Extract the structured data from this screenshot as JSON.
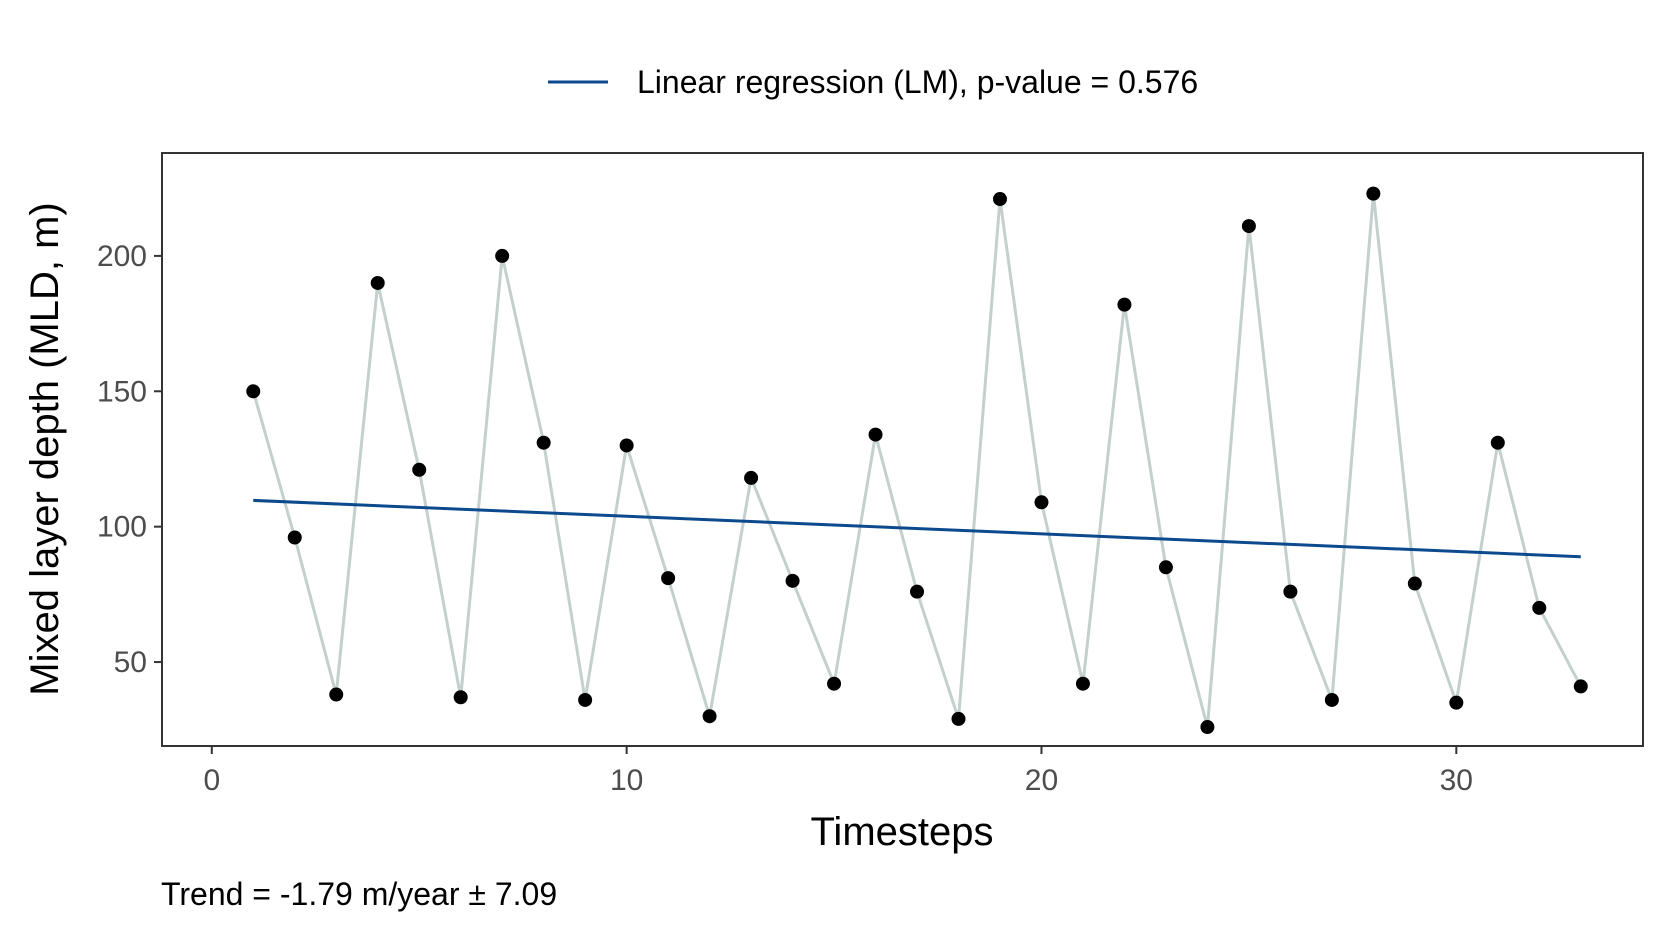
{
  "chart_data": {
    "type": "line",
    "xlabel": "Timesteps",
    "ylabel": "Mixed layer depth (MLD, m)",
    "xlim": [
      -1.2,
      34.5
    ],
    "ylim": [
      19,
      238
    ],
    "x_ticks": [
      0,
      10,
      20,
      30
    ],
    "y_ticks": [
      50,
      100,
      150,
      200
    ],
    "grid": false,
    "legend_position": "top",
    "legend": {
      "label": "Linear regression (LM), p-value = 0.576"
    },
    "caption": "Trend = -1.79 m/year ± 7.09",
    "series": [
      {
        "kind": "line-with-points",
        "x": [
          1,
          2,
          3,
          4,
          5,
          6,
          7,
          8,
          9,
          10,
          11,
          12,
          13,
          14,
          15,
          16,
          17,
          18,
          19,
          20,
          21,
          22,
          23,
          24,
          25,
          26,
          27,
          28,
          29,
          30,
          31,
          32,
          33
        ],
        "values": [
          150,
          96,
          38,
          190,
          121,
          37,
          200,
          131,
          36,
          130,
          81,
          30,
          118,
          80,
          42,
          134,
          76,
          29,
          221,
          109,
          42,
          182,
          85,
          26,
          211,
          76,
          36,
          223,
          79,
          35,
          131,
          70,
          41
        ]
      },
      {
        "name": "Linear regression (LM), p-value = 0.576",
        "kind": "regression",
        "x": [
          1,
          33
        ],
        "values": [
          109.7,
          88.9
        ]
      }
    ],
    "colors": {
      "data_line": "#c3d0cd",
      "points": "#000000",
      "regression": "#0c4a8d",
      "panel_border": "#333333",
      "tick_text": "#4d4d4d"
    }
  }
}
